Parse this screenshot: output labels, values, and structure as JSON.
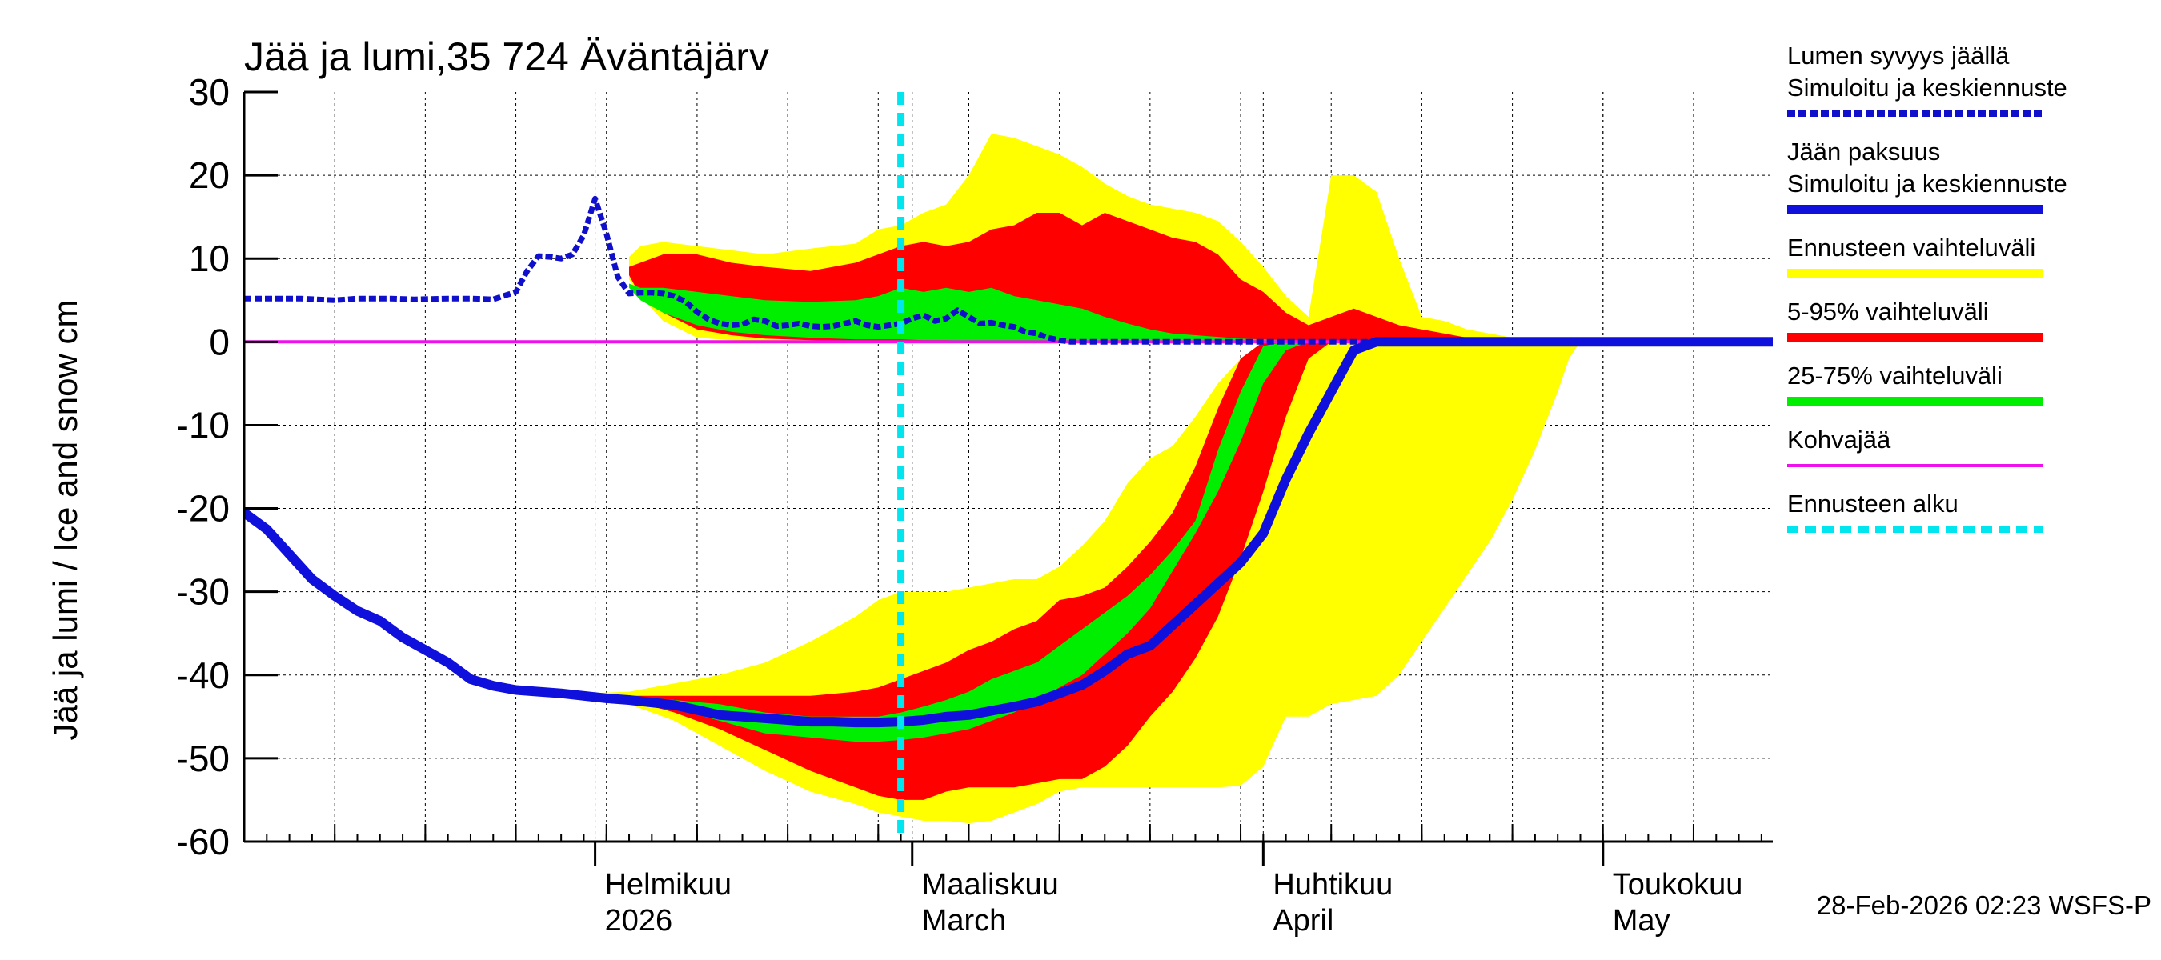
{
  "chart_data": {
    "type": "area",
    "title": "Jää ja lumi,35 724 Äväntäjärv",
    "ylabel": "Jää ja lumi / Ice and snow    cm",
    "xlabel": "",
    "ylim": [
      -60,
      30
    ],
    "yticks": [
      "30",
      "20",
      "10",
      "0",
      "-10",
      "-20",
      "-30",
      "-40",
      "-50",
      "-60"
    ],
    "x_unit": "days since 2026-01-01",
    "xlim": [
      0,
      135
    ],
    "grid": true,
    "months": [
      {
        "label": "Helmikuu",
        "sublabel": "2026",
        "day": 31
      },
      {
        "label": "Maaliskuu",
        "sublabel": "March",
        "day": 59
      },
      {
        "label": "Huhtikuu",
        "sublabel": "April",
        "day": 90
      },
      {
        "label": "Toukokuu",
        "sublabel": "May",
        "day": 120
      }
    ],
    "forecast_start_day": 58,
    "footer": "28-Feb-2026 02:23 WSFS-P",
    "series": [
      {
        "name": "snow_mean",
        "style": "dotted",
        "color": "#1010cc",
        "x": [
          0,
          2,
          5,
          8,
          10,
          13,
          15,
          18,
          20,
          22,
          24,
          25,
          26,
          27,
          28,
          29,
          30,
          31,
          32,
          33,
          34,
          35,
          36,
          37,
          38,
          39,
          40,
          41,
          42,
          43,
          44,
          45,
          46,
          47,
          48,
          49,
          50,
          51,
          52,
          53,
          54,
          55,
          56,
          57,
          58,
          59,
          60,
          61,
          62,
          63,
          64,
          65,
          66,
          67,
          68,
          69,
          70,
          71,
          72,
          73,
          74,
          75,
          76,
          77,
          78,
          79,
          80,
          81,
          82,
          83,
          84,
          85,
          86,
          87,
          88,
          89,
          90,
          91,
          92,
          93,
          94,
          95,
          96,
          97,
          98,
          99,
          100,
          101,
          102,
          103,
          104,
          105,
          106,
          107,
          108,
          109,
          110,
          111,
          112,
          113,
          114,
          115,
          116,
          117,
          118,
          119,
          120,
          125,
          130,
          135
        ],
        "y": [
          5.2,
          5.2,
          5.2,
          5.0,
          5.2,
          5.2,
          5.1,
          5.2,
          5.2,
          5.1,
          6.0,
          8.5,
          10.3,
          10.2,
          10.0,
          10.5,
          12.8,
          17.2,
          13.0,
          7.8,
          5.8,
          5.9,
          5.9,
          5.8,
          5.5,
          4.8,
          3.6,
          2.7,
          2.2,
          2.0,
          2.1,
          2.7,
          2.5,
          1.9,
          2.0,
          2.2,
          1.9,
          1.8,
          1.9,
          2.2,
          2.5,
          2.0,
          1.8,
          2.0,
          2.2,
          2.8,
          3.2,
          2.5,
          2.8,
          3.8,
          3.0,
          2.2,
          2.3,
          2.0,
          1.8,
          1.2,
          1.0,
          0.5,
          0.2,
          0.0,
          0,
          0,
          0,
          0,
          0,
          0,
          0,
          0,
          0,
          0,
          0,
          0,
          0,
          0,
          0,
          0,
          0,
          0,
          0,
          0,
          0,
          0,
          0,
          0,
          0,
          0,
          0,
          0,
          0,
          0,
          0,
          0,
          0,
          0,
          0,
          0,
          0,
          0,
          0,
          0,
          0,
          0,
          0,
          0,
          0,
          0,
          0,
          0,
          0,
          0
        ]
      },
      {
        "name": "ice_mean",
        "style": "solid",
        "color": "#1010dd",
        "x": [
          0,
          2,
          4,
          6,
          8,
          10,
          12,
          14,
          16,
          18,
          20,
          22,
          24,
          26,
          28,
          30,
          32,
          34,
          36,
          38,
          40,
          42,
          44,
          46,
          48,
          50,
          52,
          54,
          56,
          58,
          60,
          62,
          64,
          66,
          68,
          70,
          72,
          74,
          76,
          78,
          80,
          82,
          84,
          86,
          88,
          90,
          92,
          94,
          96,
          98,
          100,
          102,
          104,
          106,
          108,
          110,
          112,
          114,
          116,
          118,
          120,
          121,
          122,
          123,
          124,
          125,
          126,
          127,
          128,
          129,
          130,
          131,
          132,
          133,
          134,
          135
        ],
        "y": [
          -20.5,
          -22.5,
          -25.5,
          -28.5,
          -30.5,
          -32.3,
          -33.5,
          -35.5,
          -37.0,
          -38.5,
          -40.5,
          -41.3,
          -41.8,
          -42.0,
          -42.2,
          -42.5,
          -42.8,
          -43.0,
          -43.3,
          -43.6,
          -44.2,
          -44.8,
          -45.0,
          -45.2,
          -45.4,
          -45.6,
          -45.6,
          -45.7,
          -45.7,
          -45.6,
          -45.4,
          -45.0,
          -44.8,
          -44.3,
          -43.8,
          -43.2,
          -42.2,
          -41.2,
          -39.5,
          -37.5,
          -36.5,
          -34.0,
          -31.5,
          -29.0,
          -26.5,
          -23.0,
          -16.5,
          -11.0,
          -6.0,
          -1.0,
          0,
          0,
          0,
          0,
          0,
          0,
          0,
          0,
          0,
          0,
          0,
          0,
          0,
          0,
          0,
          0,
          0,
          0,
          0,
          0,
          0,
          0,
          0,
          0,
          0,
          0
        ]
      },
      {
        "name": "kohvajaa",
        "style": "solid",
        "color": "#ee11ee",
        "x": [
          0,
          135
        ],
        "y": [
          0,
          0
        ]
      }
    ],
    "bands": [
      {
        "name": "snow_range",
        "color": "#ffff00",
        "x": [
          34,
          35,
          37,
          40,
          43,
          46,
          50,
          54,
          56,
          58,
          60,
          62,
          64,
          66,
          68,
          70,
          72,
          74,
          76,
          78,
          80,
          82,
          84,
          86,
          88,
          90,
          92,
          94,
          96,
          98,
          100,
          102,
          104,
          106,
          108,
          110,
          112,
          114,
          116,
          118,
          120,
          122
        ],
        "upper": [
          10.2,
          11.5,
          12.0,
          11.5,
          11.0,
          10.5,
          11.2,
          11.8,
          13.5,
          14.0,
          15.5,
          16.5,
          20.0,
          25.0,
          24.5,
          23.5,
          22.5,
          21.0,
          19.0,
          17.5,
          16.5,
          16.0,
          15.5,
          14.5,
          12.0,
          9.0,
          5.5,
          3.0,
          20.0,
          20.0,
          18.0,
          10.0,
          3.0,
          2.5,
          1.5,
          1.0,
          0.5,
          0.3,
          0.2,
          0.1,
          0,
          0
        ],
        "lower": [
          7.5,
          5.5,
          2.5,
          0.5,
          0.2,
          0.1,
          0,
          0,
          0,
          0,
          0,
          0,
          0,
          0,
          0,
          0,
          0,
          0,
          0,
          0,
          0,
          0,
          0,
          0,
          0,
          0,
          0,
          0,
          0,
          0,
          0,
          0,
          0,
          0,
          0,
          0,
          0,
          0,
          0,
          0,
          0,
          0
        ]
      },
      {
        "name": "snow_5_95",
        "color": "#ff0000",
        "x": [
          34,
          35,
          37,
          40,
          43,
          46,
          50,
          54,
          56,
          58,
          60,
          62,
          64,
          66,
          68,
          70,
          72,
          74,
          76,
          78,
          80,
          82,
          84,
          86,
          88,
          90,
          92,
          94,
          96,
          98,
          100,
          102,
          104,
          106,
          108,
          110,
          112,
          114,
          116,
          118
        ],
        "upper": [
          9.0,
          9.5,
          10.5,
          10.5,
          9.5,
          9.0,
          8.5,
          9.5,
          10.5,
          11.5,
          12.0,
          11.5,
          12.0,
          13.5,
          14.0,
          15.5,
          15.5,
          14.0,
          15.5,
          14.5,
          13.5,
          12.5,
          12.0,
          10.5,
          7.5,
          6.0,
          3.5,
          2.0,
          3.0,
          4.0,
          3.0,
          2.0,
          1.5,
          1.0,
          0.5,
          0.3,
          0.2,
          0.1,
          0.1,
          0
        ],
        "lower": [
          8.0,
          5.5,
          3.5,
          1.5,
          0.8,
          0.4,
          0.2,
          0.1,
          0.1,
          0.1,
          0,
          0,
          0,
          0,
          0,
          0,
          0,
          0,
          0,
          0,
          0,
          0,
          0,
          0,
          0,
          0,
          0,
          0,
          0,
          0,
          0,
          0,
          0,
          0,
          0,
          0,
          0,
          0,
          0,
          0
        ]
      },
      {
        "name": "snow_25_75",
        "color": "#00ee00",
        "x": [
          34,
          35,
          37,
          40,
          43,
          46,
          50,
          54,
          56,
          58,
          60,
          62,
          64,
          66,
          68,
          70,
          72,
          74,
          76,
          78,
          80,
          82,
          84,
          86,
          88,
          90,
          92,
          94,
          96,
          98
        ],
        "upper": [
          7.0,
          6.5,
          6.5,
          6.0,
          5.5,
          5.0,
          4.8,
          5.0,
          5.5,
          6.5,
          6.0,
          6.5,
          6.0,
          6.5,
          5.5,
          5.0,
          4.5,
          4.0,
          3.0,
          2.2,
          1.5,
          1.0,
          0.8,
          0.6,
          0.4,
          0.3,
          0.2,
          0.1,
          0.1,
          0
        ],
        "lower": [
          6.5,
          5.0,
          3.5,
          2.0,
          1.2,
          0.8,
          0.5,
          0.3,
          0.3,
          0.3,
          0.2,
          0.2,
          0.1,
          0.1,
          0.1,
          0,
          0,
          0,
          0,
          0,
          0,
          0,
          0,
          0,
          0,
          0,
          0,
          0,
          0,
          0
        ]
      },
      {
        "name": "ice_range",
        "color": "#ffff00",
        "x": [
          30,
          34,
          38,
          42,
          46,
          50,
          54,
          56,
          58,
          60,
          62,
          64,
          66,
          68,
          70,
          72,
          74,
          76,
          78,
          80,
          82,
          84,
          86,
          88,
          90,
          92,
          94,
          96,
          98,
          100,
          102,
          104,
          106,
          108,
          110,
          112,
          114,
          116,
          117,
          118,
          119,
          120,
          121,
          122,
          124,
          126,
          128,
          130,
          135
        ],
        "upper": [
          -42.2,
          -42.0,
          -41.0,
          -40.0,
          -38.5,
          -36.0,
          -33.0,
          -31.0,
          -30.0,
          -30.0,
          -30.0,
          -29.5,
          -29.0,
          -28.5,
          -28.5,
          -27.0,
          -24.5,
          -21.5,
          -17.0,
          -14.0,
          -12.5,
          -9.0,
          -5.0,
          -2.0,
          0,
          0,
          0,
          0,
          0,
          0,
          0,
          0,
          0,
          0,
          0,
          0,
          0,
          0,
          0,
          0,
          0,
          0,
          0,
          0,
          0,
          0,
          0,
          0,
          0
        ],
        "lower": [
          -42.8,
          -43.5,
          -45.5,
          -48.5,
          -51.5,
          -54.0,
          -55.5,
          -56.5,
          -57.0,
          -57.5,
          -57.5,
          -57.8,
          -57.5,
          -56.5,
          -55.5,
          -54.0,
          -53.5,
          -53.5,
          -53.5,
          -53.5,
          -53.5,
          -53.5,
          -53.5,
          -53.3,
          -51.0,
          -45.0,
          -45.0,
          -43.5,
          -43.0,
          -42.5,
          -40.0,
          -36.0,
          -32.0,
          -28.0,
          -24.0,
          -19.0,
          -13.0,
          -6.0,
          -2.0,
          0,
          0,
          0,
          0,
          0,
          0,
          0,
          0,
          0,
          0
        ]
      },
      {
        "name": "ice_5_95",
        "color": "#ff0000",
        "x": [
          30,
          34,
          38,
          42,
          46,
          50,
          54,
          56,
          58,
          60,
          62,
          64,
          66,
          68,
          70,
          72,
          74,
          76,
          78,
          80,
          82,
          84,
          86,
          88,
          90,
          92,
          94,
          96,
          98,
          100,
          102,
          104,
          106,
          108,
          110,
          112,
          114,
          116,
          118,
          120,
          135
        ],
        "upper": [
          -42.5,
          -42.5,
          -42.5,
          -42.5,
          -42.5,
          -42.5,
          -42.0,
          -41.5,
          -40.5,
          -39.5,
          -38.5,
          -37.0,
          -36.0,
          -34.5,
          -33.5,
          -31.0,
          -30.5,
          -29.5,
          -27.0,
          -24.0,
          -20.5,
          -15.0,
          -8.0,
          -2.0,
          0,
          0,
          0,
          0,
          0,
          0,
          0,
          0,
          0,
          0,
          0,
          0,
          0,
          0,
          0,
          0,
          0
        ],
        "lower": [
          -42.5,
          -43.0,
          -44.5,
          -46.5,
          -49.0,
          -51.5,
          -53.5,
          -54.5,
          -55.0,
          -55.0,
          -54.0,
          -53.5,
          -53.5,
          -53.5,
          -53.0,
          -52.5,
          -52.5,
          -51.0,
          -48.5,
          -45.0,
          -42.0,
          -38.0,
          -33.0,
          -26.0,
          -18.0,
          -9.0,
          -2.0,
          0,
          0,
          0,
          0,
          0,
          0,
          0,
          0,
          0,
          0,
          0,
          0,
          0,
          0
        ]
      },
      {
        "name": "ice_25_75",
        "color": "#00ee00",
        "x": [
          30,
          34,
          38,
          42,
          46,
          50,
          54,
          56,
          58,
          60,
          62,
          64,
          66,
          68,
          70,
          72,
          74,
          76,
          78,
          80,
          82,
          84,
          86,
          88,
          90,
          92,
          94,
          96,
          98,
          100,
          102,
          104,
          106,
          108,
          110,
          135
        ],
        "upper": [
          -42.5,
          -42.5,
          -43.0,
          -43.5,
          -44.5,
          -45.0,
          -45.0,
          -45.0,
          -44.5,
          -43.8,
          -43.0,
          -42.0,
          -40.5,
          -39.5,
          -38.5,
          -36.5,
          -34.5,
          -32.5,
          -30.5,
          -28.0,
          -25.0,
          -21.5,
          -13.0,
          -6.0,
          -0.5,
          0,
          0,
          0,
          0,
          0,
          0,
          0,
          0,
          0,
          0,
          0
        ],
        "lower": [
          -42.5,
          -43.0,
          -44.0,
          -45.5,
          -47.0,
          -47.5,
          -48.0,
          -48.0,
          -47.8,
          -47.5,
          -47.0,
          -46.5,
          -45.5,
          -44.5,
          -43.0,
          -41.5,
          -40.0,
          -37.5,
          -35.0,
          -32.0,
          -27.5,
          -23.0,
          -18.0,
          -12.0,
          -5.0,
          -1.0,
          0,
          0,
          0,
          0,
          0,
          0,
          0,
          0,
          0,
          0
        ]
      }
    ],
    "legend": [
      {
        "text": "Lumen syvyys jäällä",
        "text2": "Simuloitu ja keskiennuste",
        "color": "#1010cc",
        "style": "dotted"
      },
      {
        "text": "Jään paksuus",
        "text2": "Simuloitu ja keskiennuste",
        "color": "#1010dd",
        "style": "solid"
      },
      {
        "text": "Ennusteen vaihteluväli",
        "text2": "",
        "color": "#ffff00",
        "style": "band"
      },
      {
        "text": "5-95% vaihteluväli",
        "text2": "",
        "color": "#ff0000",
        "style": "band"
      },
      {
        "text": "25-75% vaihteluväli",
        "text2": "",
        "color": "#00ee00",
        "style": "band"
      },
      {
        "text": "Kohvajää",
        "text2": "",
        "color": "#ee11ee",
        "style": "thin"
      },
      {
        "text": "Ennusteen alku",
        "text2": "",
        "color": "#00e5ee",
        "style": "dashed"
      }
    ]
  }
}
